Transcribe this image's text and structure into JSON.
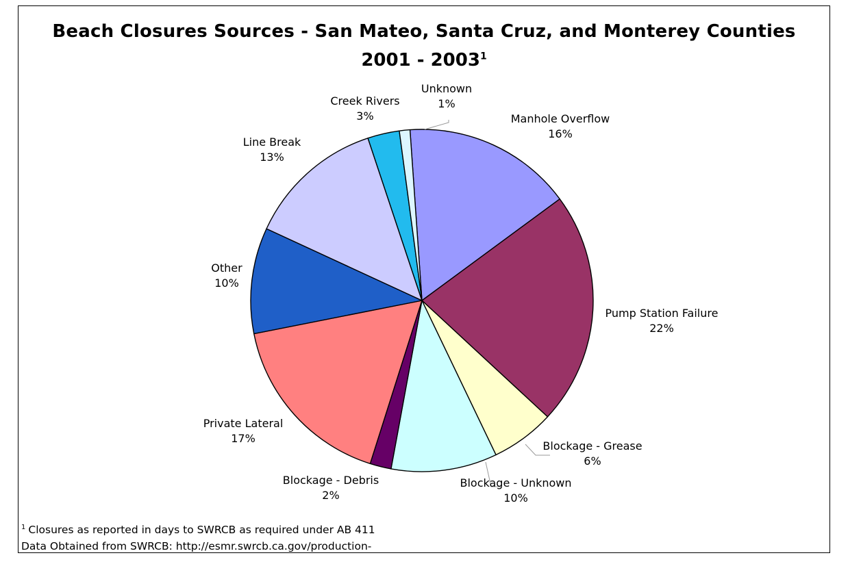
{
  "chart_data": {
    "type": "pie",
    "title": "Beach Closures Sources - San Mateo, Santa Cruz, and Monterey Counties",
    "subtitle": "2001 - 2003",
    "subtitle_sup": "1",
    "start_angle_deg": -4,
    "slices": [
      {
        "label": "Manhole Overflow",
        "value": 16,
        "value_label": "16%",
        "color": "#9999ff"
      },
      {
        "label": "Pump Station Failure",
        "value": 22,
        "value_label": "22%",
        "color": "#993366"
      },
      {
        "label": "Blockage - Grease",
        "value": 6,
        "value_label": "6%",
        "color": "#ffffcc"
      },
      {
        "label": "Blockage - Unknown",
        "value": 10,
        "value_label": "10%",
        "color": "#ccffff"
      },
      {
        "label": "Blockage - Debris",
        "value": 2,
        "value_label": "2%",
        "color": "#660066"
      },
      {
        "label": "Private Lateral",
        "value": 17,
        "value_label": "17%",
        "color": "#ff8080"
      },
      {
        "label": "Other",
        "value": 10,
        "value_label": "10%",
        "color": "#1f5fc8"
      },
      {
        "label": "Line Break",
        "value": 13,
        "value_label": "13%",
        "color": "#ccccff"
      },
      {
        "label": "Creek Rivers",
        "value": 3,
        "value_label": "3%",
        "color": "#22bbee"
      },
      {
        "label": "Unknown",
        "value": 1,
        "value_label": "1%",
        "color": "#ddf6ff"
      }
    ]
  },
  "footnotes": {
    "note_1_marker": "1",
    "note_1_text": "Closures as reported in days to SWRCB as required under AB 411",
    "note_2_text": "Data Obtained from SWRCB: http://esmr.swrcb.ca.gov/production-"
  }
}
